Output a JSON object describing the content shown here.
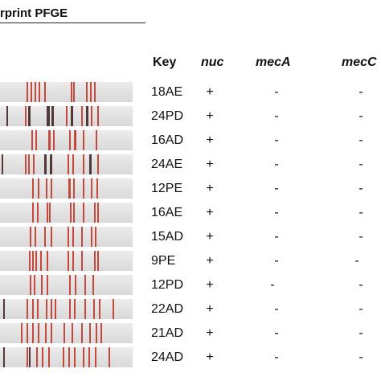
{
  "figure_title": "rprint PFGE",
  "headers": {
    "key": "Key",
    "nuc": "nuc",
    "meca": "mecA",
    "mecc": "mecC"
  },
  "colors": {
    "band": "#c0392b",
    "band_dark": "#3a1a1a",
    "lane_bg": "#e2e2e2"
  },
  "rows": [
    {
      "key": "18AE",
      "nuc": "+",
      "meca": "-",
      "mecc": "-"
    },
    {
      "key": "24PD",
      "nuc": "+",
      "meca": "-",
      "mecc": "-"
    },
    {
      "key": "16AD",
      "nuc": "+",
      "meca": "-",
      "mecc": "-"
    },
    {
      "key": "24AE",
      "nuc": "+",
      "meca": "-",
      "mecc": "-"
    },
    {
      "key": "12PE",
      "nuc": "+",
      "meca": "-",
      "mecc": "-"
    },
    {
      "key": "16AE",
      "nuc": "+",
      "meca": "-",
      "mecc": "-"
    },
    {
      "key": "15AD",
      "nuc": "+",
      "meca": "-",
      "mecc": "-"
    },
    {
      "key": "9PE",
      "nuc": "+",
      "meca": "-",
      "mecc": "-"
    },
    {
      "key": "12PD",
      "nuc": "+",
      "meca": "-",
      "mecc": "-"
    },
    {
      "key": "22AD",
      "nuc": "+",
      "meca": "-",
      "mecc": "-"
    },
    {
      "key": "21AD",
      "nuc": "+",
      "meca": "-",
      "mecc": "-"
    },
    {
      "key": "24AD",
      "nuc": "+",
      "meca": "-",
      "mecc": "-"
    }
  ]
}
